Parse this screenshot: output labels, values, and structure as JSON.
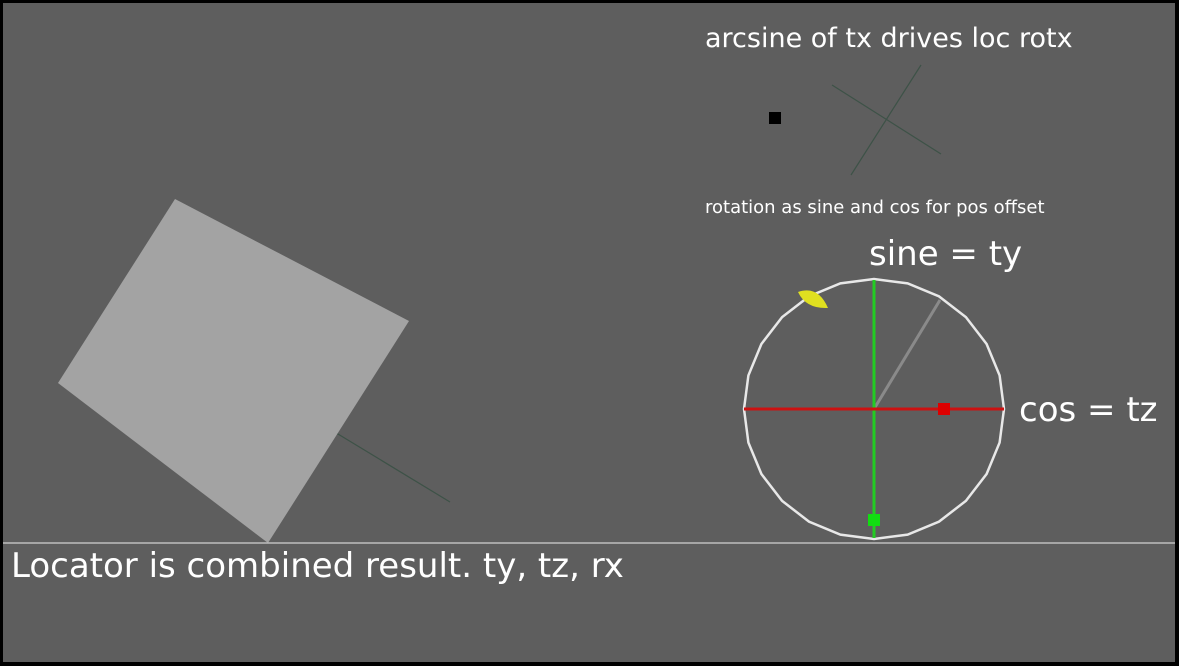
{
  "labels": {
    "arcsine_title": "arcsine of tx drives loc rotx",
    "rotation_title": "rotation as sine and cos for pos offset",
    "sine_label": "sine = ty",
    "cos_label": "cos = tz",
    "locator_caption": "Locator is combined result. ty, tz, rx"
  },
  "colors": {
    "background": "#5e5e5e",
    "frame": "#000000",
    "cube": "#a3a3a3",
    "circle": "#e8e8e8",
    "sine_axis": "#22cc22",
    "cos_axis": "#cc1111",
    "sine_marker": "#11dd11",
    "cos_marker": "#dd0000",
    "angle_handle": "#e0e020",
    "ground_line": "#bdbdbd",
    "locator_lines": "#3d5247"
  },
  "icons": {
    "tx_control": "black-square-icon",
    "angle_handle": "leaf-handle-icon"
  }
}
